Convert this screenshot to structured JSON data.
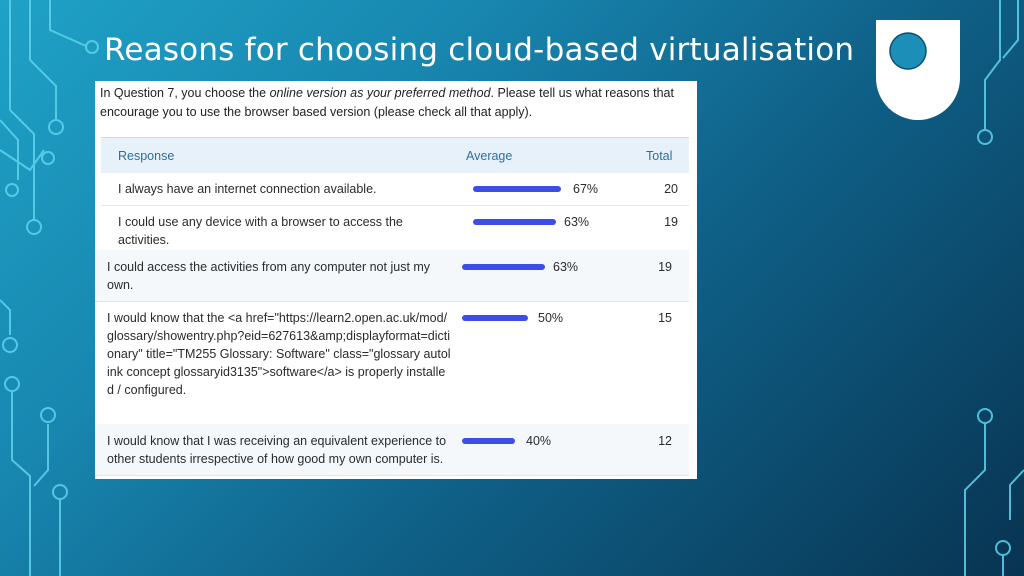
{
  "slide": {
    "title": "Reasons for choosing cloud-based virtualisation"
  },
  "question": {
    "prefix": "In Question 7, you choose the ",
    "emphasis": "online version as your preferred method",
    "suffix": ". Please tell us what reasons that encourage you to use the browser based version (please check all that apply)."
  },
  "table": {
    "headers": {
      "response": "Response",
      "average": "Average",
      "total": "Total"
    },
    "rows": [
      {
        "response": "I always have an internet connection available.",
        "percent": "67%",
        "fraction": 0.67,
        "total": "20"
      },
      {
        "response": "I could use any device with a browser to access the activities.",
        "percent": "63%",
        "fraction": 0.63,
        "total": "19"
      },
      {
        "response": "I could access the activities from any computer not just my own.",
        "percent": "63%",
        "fraction": 0.63,
        "total": "19"
      },
      {
        "response": "I would know that the <a href=\"https://learn2.open.ac.uk/mod/glossary/showentry.php?eid=627613&amp;displayformat=dictionary\" title=\"TM255 Glossary: Software\" class=\"glossary autolink concept glossaryid3135\">software</a> is properly installed / configured.",
        "percent": "50%",
        "fraction": 0.5,
        "total": "15"
      },
      {
        "response": "I would know that I was receiving an equivalent experience to other students irrespective of how good my own computer is.",
        "percent": "40%",
        "fraction": 0.4,
        "total": "12"
      }
    ]
  },
  "colors": {
    "bar": "#3b4ee8",
    "header_text": "#2f6e9d",
    "accent": "#4cc9e8"
  },
  "icons": [
    "open-university-logo",
    "circuit-decoration"
  ]
}
